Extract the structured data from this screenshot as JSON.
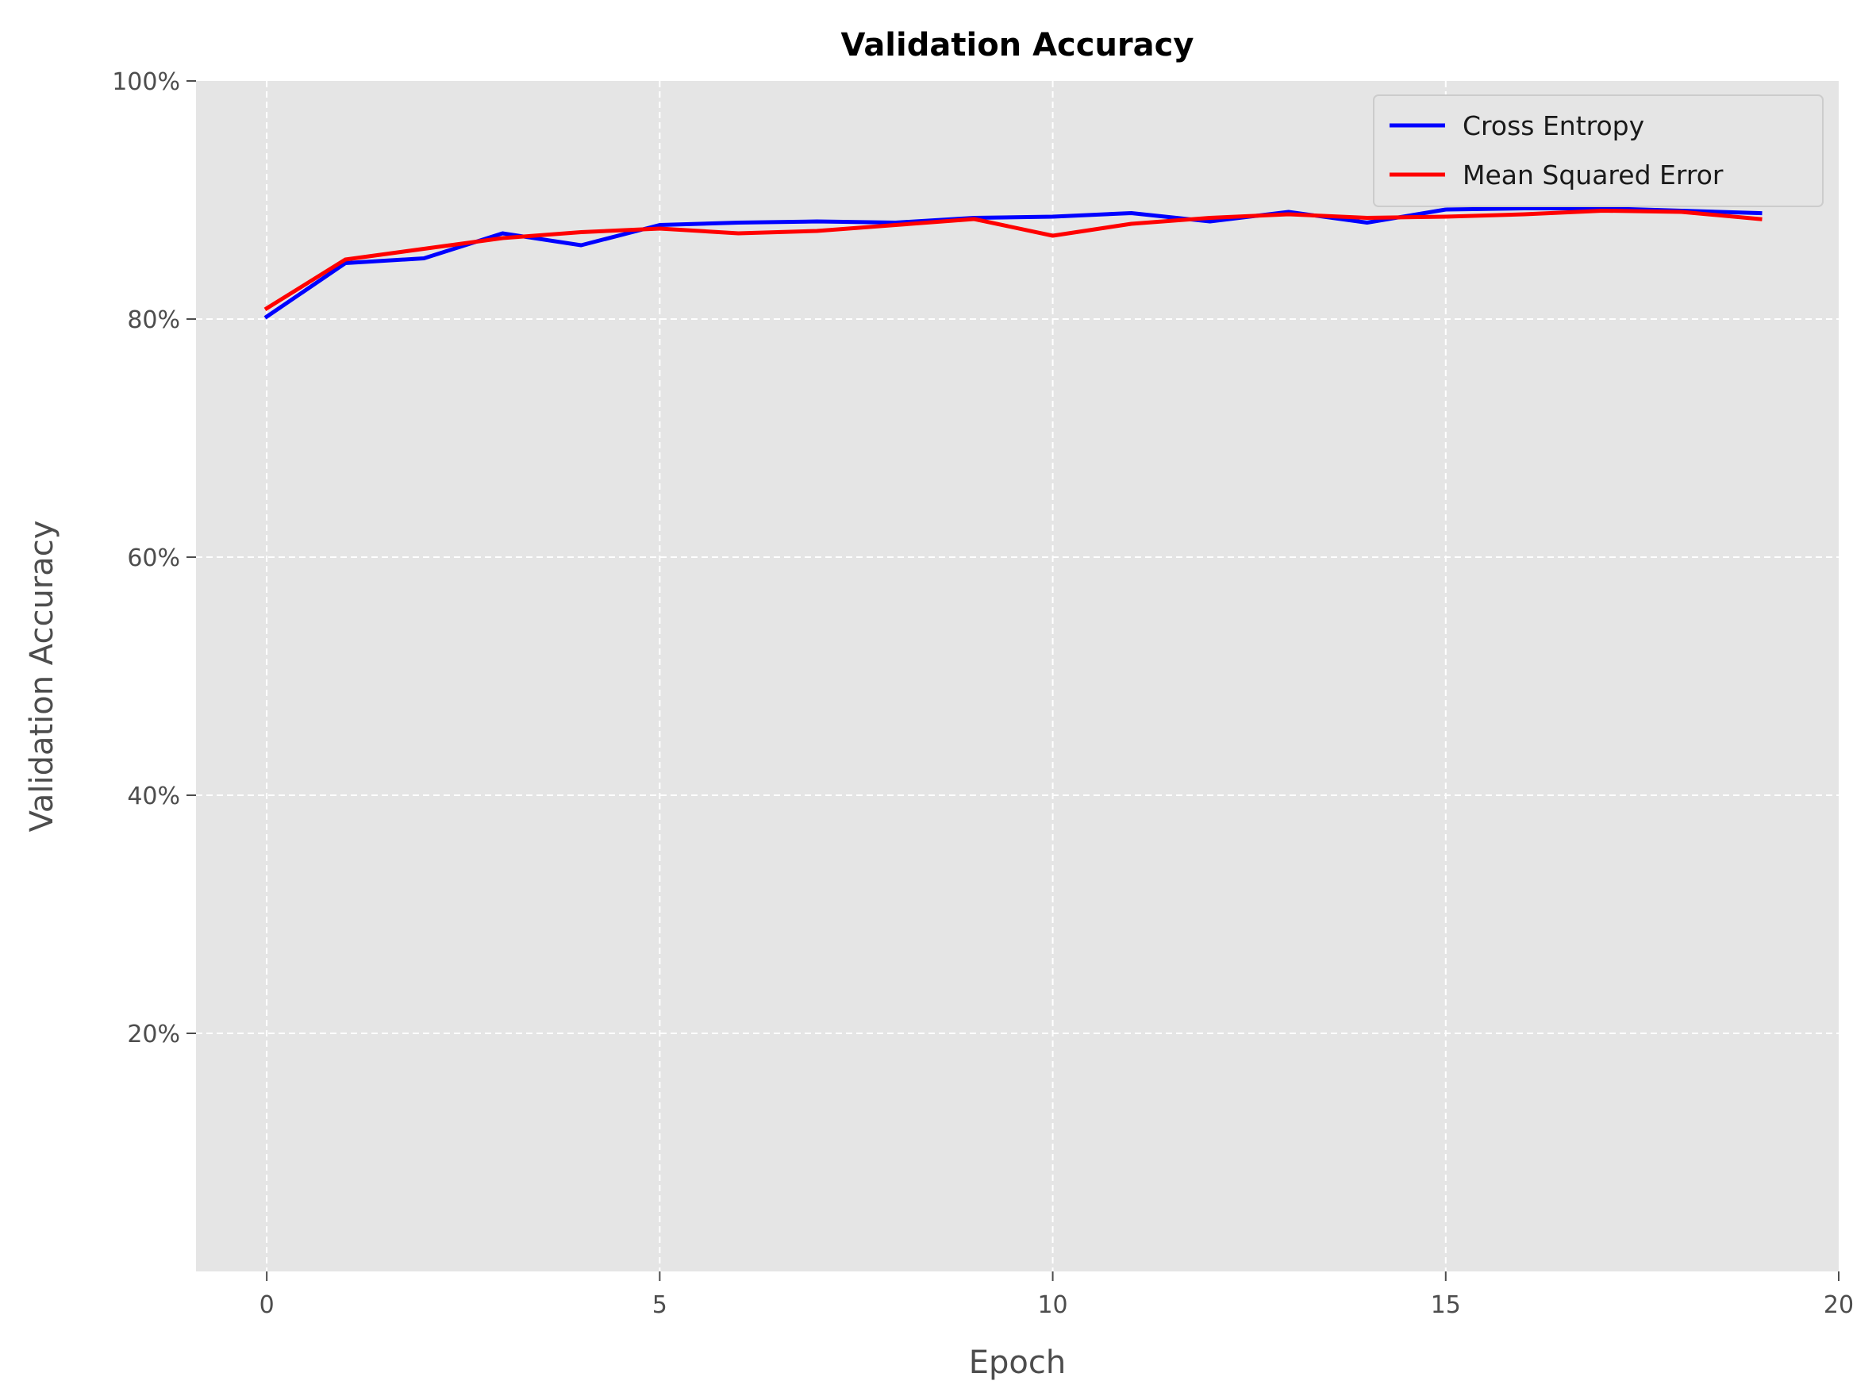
{
  "chart_data": {
    "type": "line",
    "title": "Validation Accuracy",
    "xlabel": "Epoch",
    "ylabel": "Validation Accuracy",
    "xlim": [
      -0.9,
      20
    ],
    "ylim": [
      0,
      100
    ],
    "x_ticks": [
      0,
      5,
      10,
      15,
      20
    ],
    "y_ticks": [
      20,
      40,
      60,
      80,
      100
    ],
    "y_tick_labels": [
      "20%",
      "40%",
      "60%",
      "80%",
      "100%"
    ],
    "grid": true,
    "grid_style": "dashed",
    "legend_position": "top-right",
    "plot_background": "#e5e5e5",
    "x": [
      0,
      1,
      2,
      3,
      4,
      5,
      6,
      7,
      8,
      9,
      10,
      11,
      12,
      13,
      14,
      15,
      16,
      17,
      18,
      19
    ],
    "series": [
      {
        "name": "Cross Entropy",
        "color": "#0000ff",
        "values": [
          80.2,
          84.7,
          85.1,
          87.2,
          86.2,
          87.9,
          88.1,
          88.2,
          88.1,
          88.5,
          88.6,
          88.9,
          88.2,
          89.0,
          88.1,
          89.2,
          89.3,
          89.3,
          89.1,
          88.9
        ]
      },
      {
        "name": "Mean Squared Error",
        "color": "#ff0000",
        "values": [
          80.9,
          85.0,
          85.9,
          86.8,
          87.3,
          87.6,
          87.2,
          87.4,
          87.9,
          88.4,
          87.0,
          88.0,
          88.5,
          88.8,
          88.5,
          88.6,
          88.8,
          89.1,
          89.0,
          88.4
        ]
      }
    ]
  }
}
